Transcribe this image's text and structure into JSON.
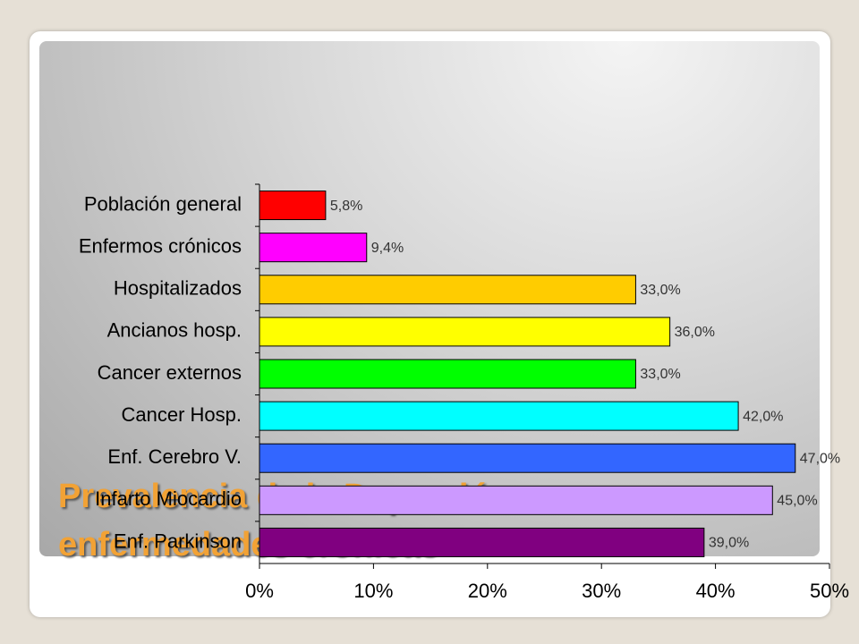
{
  "slide": {
    "title": "Prevalencia de la Depresión en enfermedades crónicas"
  },
  "chart_data": {
    "type": "hbar",
    "categories": [
      "Población general",
      "Enfermos crónicos",
      "Hospitalizados",
      "Ancianos hosp.",
      "Cancer externos",
      "Cancer Hosp.",
      "Enf. Cerebro V.",
      "Infarto Miocardio",
      "Enf. Parkinson"
    ],
    "values": [
      5.8,
      9.4,
      33.0,
      36.0,
      33.0,
      42.0,
      47.0,
      45.0,
      39.0
    ],
    "value_labels": [
      "5,8%",
      "9,4%",
      "33,0%",
      "36,0%",
      "33,0%",
      "42,0%",
      "47,0%",
      "45,0%",
      "39,0%"
    ],
    "colors": [
      "#ff0000",
      "#ff00ff",
      "#ffcc00",
      "#ffff00",
      "#00ff00",
      "#00ffff",
      "#3366ff",
      "#cc99ff",
      "#800080"
    ],
    "xlim": [
      0,
      50
    ],
    "xticks": [
      {
        "value": 0,
        "label": "0%"
      },
      {
        "value": 10,
        "label": "10%"
      },
      {
        "value": 20,
        "label": "20%"
      },
      {
        "value": 30,
        "label": "30%"
      },
      {
        "value": 40,
        "label": "40%"
      },
      {
        "value": 50,
        "label": "50%"
      }
    ],
    "grid": false
  }
}
